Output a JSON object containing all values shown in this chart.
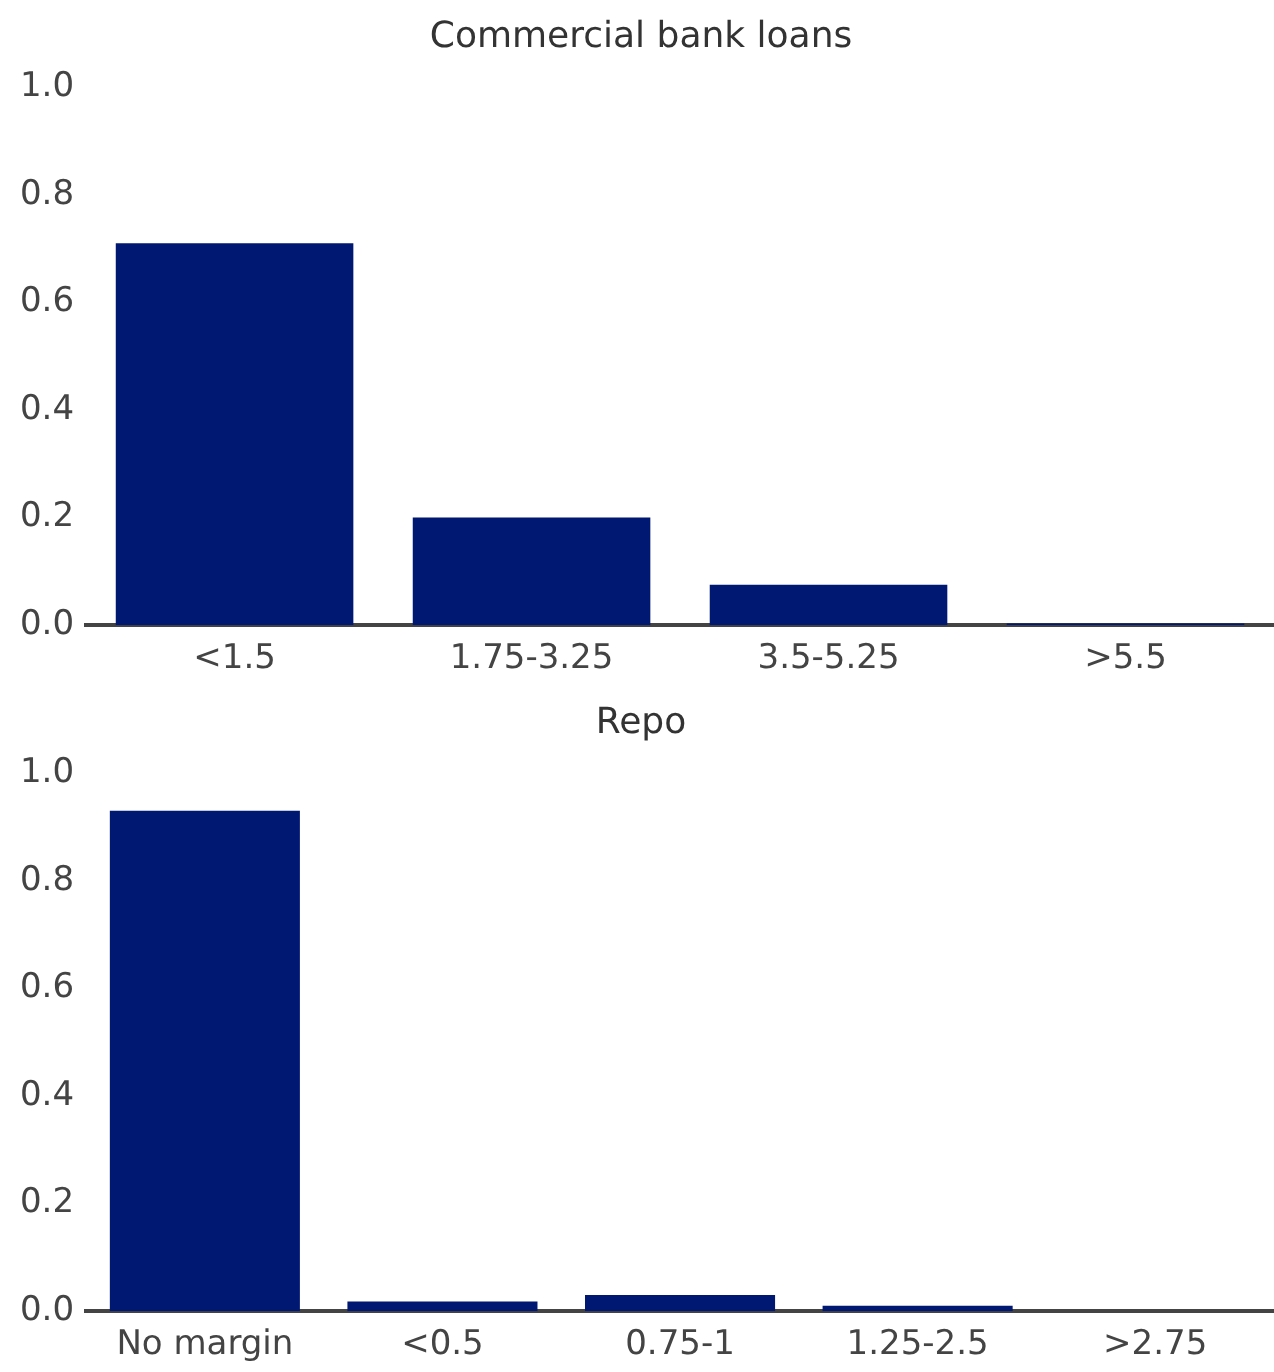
{
  "chart_data": [
    {
      "type": "bar",
      "title": "Commercial bank loans",
      "categories": [
        "<1.5",
        "1.75-3.25",
        "3.5-5.25",
        ">5.5"
      ],
      "values": [
        0.71,
        0.2,
        0.075,
        0.003
      ],
      "color": "#001871",
      "ylim": [
        0,
        1
      ],
      "yticks": [
        {
          "value": 0,
          "label": "0.0"
        },
        {
          "value": 0.2,
          "label": "0.2"
        },
        {
          "value": 0.4,
          "label": "0.4"
        },
        {
          "value": 0.6,
          "label": "0.6"
        },
        {
          "value": 0.8,
          "label": "0.8"
        },
        {
          "value": 1,
          "label": "1.0"
        }
      ],
      "grid": false,
      "legend": false
    },
    {
      "type": "bar",
      "title": "Repo",
      "categories": [
        "No margin",
        "<0.5",
        "0.75-1",
        "1.25-2.5",
        ">2.75"
      ],
      "values": [
        0.93,
        0.018,
        0.03,
        0.01,
        0
      ],
      "color": "#001871",
      "ylim": [
        0,
        1
      ],
      "yticks": [
        {
          "value": 0,
          "label": "0.0"
        },
        {
          "value": 0.2,
          "label": "0.2"
        },
        {
          "value": 0.4,
          "label": "0.4"
        },
        {
          "value": 0.6,
          "label": "0.6"
        },
        {
          "value": 0.8,
          "label": "0.8"
        },
        {
          "value": 1,
          "label": "1.0"
        }
      ],
      "grid": false,
      "legend": false
    }
  ]
}
